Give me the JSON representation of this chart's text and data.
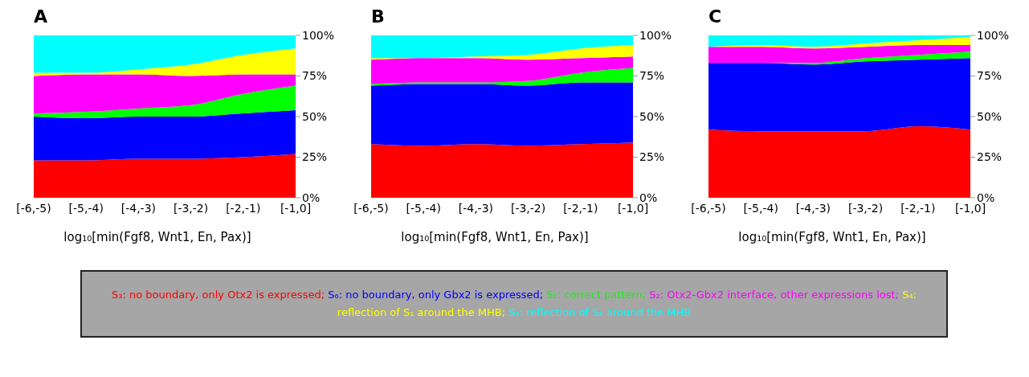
{
  "chart_data": [
    {
      "type": "area",
      "title": "A",
      "xlabel": "log₁₀[min(Fgf8, Wnt1, En, Pax)]",
      "categories": [
        "[-6,-5)",
        "[-5,-4)",
        "[-4,-3)",
        "[-3,-2)",
        "[-2,-1)",
        "[-1,0]"
      ],
      "stacked": true,
      "ylim": [
        0,
        100
      ],
      "yticks": [
        {
          "value": 0,
          "label": "0%"
        },
        {
          "value": 25,
          "label": "25%"
        },
        {
          "value": 50,
          "label": "50%"
        },
        {
          "value": 75,
          "label": "75%"
        },
        {
          "value": 100,
          "label": "100%"
        }
      ],
      "legend": "bottom",
      "series": [
        {
          "name": "S₃: no boundary, only Otx2 is expressed;",
          "color": "#ff0000",
          "values": [
            23,
            23,
            24,
            24,
            25,
            27
          ]
        },
        {
          "name": "S₆: no boundary, only Gbx2 is expressed;",
          "color": "#0000ff",
          "values": [
            27,
            26,
            26,
            26,
            27,
            27
          ]
        },
        {
          "name": "S₁: correct pattern;",
          "color": "#00ff00",
          "values": [
            2,
            4,
            5,
            7,
            12,
            15
          ]
        },
        {
          "name": "S₂: Otx2-Gbx2 interface, other expressions lost;",
          "color": "#ff00ff",
          "values": [
            23,
            23,
            21,
            18,
            12,
            7
          ]
        },
        {
          "name": "S₄: reflection of S₁ around the MHB;",
          "color": "#ffff00",
          "values": [
            2,
            1,
            3,
            7,
            12,
            16
          ]
        },
        {
          "name": "S₅: reflection of S₂ around the MHB",
          "color": "#00ffff",
          "values": [
            23,
            23,
            21,
            18,
            12,
            8
          ]
        }
      ]
    },
    {
      "type": "area",
      "title": "B",
      "xlabel": "log₁₀[min(Fgf8, Wnt1, En, Pax)]",
      "categories": [
        "[-6,-5)",
        "[-5,-4)",
        "[-4,-3)",
        "[-3,-2)",
        "[-2,-1)",
        "[-1,0]"
      ],
      "stacked": true,
      "ylim": [
        0,
        100
      ],
      "yticks": [
        {
          "value": 0,
          "label": "0%"
        },
        {
          "value": 25,
          "label": "25%"
        },
        {
          "value": 50,
          "label": "50%"
        },
        {
          "value": 75,
          "label": "75%"
        },
        {
          "value": 100,
          "label": "100%"
        }
      ],
      "series": [
        {
          "color": "#ff0000",
          "values": [
            33,
            32,
            33,
            32,
            33,
            34
          ]
        },
        {
          "color": "#0000ff",
          "values": [
            36,
            38,
            37,
            37,
            38,
            37
          ]
        },
        {
          "color": "#00ff00",
          "values": [
            1,
            1,
            1,
            3,
            6,
            9
          ]
        },
        {
          "color": "#ff00ff",
          "values": [
            15,
            15,
            15,
            13,
            9,
            7
          ]
        },
        {
          "color": "#ffff00",
          "values": [
            1,
            0,
            1,
            3,
            6,
            7
          ]
        },
        {
          "color": "#00ffff",
          "values": [
            14,
            14,
            13,
            12,
            8,
            6
          ]
        }
      ]
    },
    {
      "type": "area",
      "title": "C",
      "xlabel": "log₁₀[min(Fgf8, Wnt1, En, Pax)]",
      "categories": [
        "[-6,-5)",
        "[-5,-4)",
        "[-4,-3)",
        "[-3,-2)",
        "[-2,-1)",
        "[-1,0]"
      ],
      "stacked": true,
      "ylim": [
        0,
        100
      ],
      "yticks": [
        {
          "value": 0,
          "label": "0%"
        },
        {
          "value": 25,
          "label": "25%"
        },
        {
          "value": 50,
          "label": "50%"
        },
        {
          "value": 75,
          "label": "75%"
        },
        {
          "value": 100,
          "label": "100%"
        }
      ],
      "series": [
        {
          "color": "#ff0000",
          "values": [
            42,
            41,
            41,
            41,
            44,
            42
          ]
        },
        {
          "color": "#0000ff",
          "values": [
            41,
            42,
            41,
            43,
            41,
            44
          ]
        },
        {
          "color": "#00ff00",
          "values": [
            0,
            0,
            1,
            2,
            3,
            4
          ]
        },
        {
          "color": "#ff00ff",
          "values": [
            10,
            10,
            9,
            7,
            6,
            4
          ]
        },
        {
          "color": "#ffff00",
          "values": [
            0,
            1,
            1,
            2,
            3,
            5
          ]
        },
        {
          "color": "#00ffff",
          "values": [
            7,
            6,
            7,
            5,
            3,
            1
          ]
        }
      ]
    }
  ]
}
